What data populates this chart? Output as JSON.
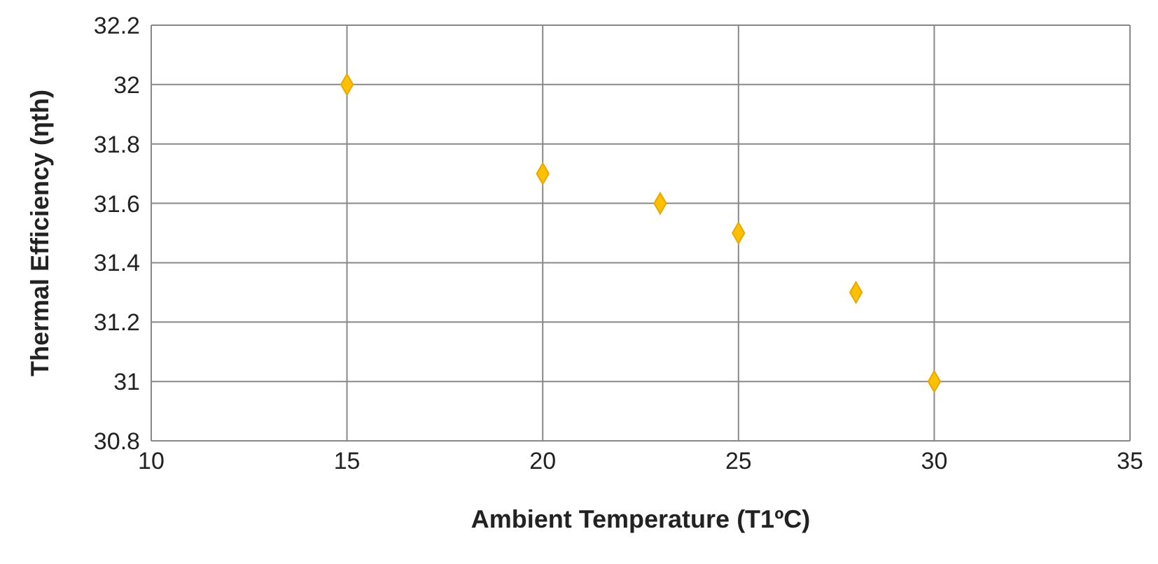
{
  "chart_data": {
    "type": "scatter",
    "xlabel": "Ambient Temperature (T1ºC)",
    "ylabel": "Thermal Efficiency (ηth)",
    "x": [
      15,
      20,
      23,
      25,
      28,
      30
    ],
    "series": [
      {
        "color": "#ffc000",
        "values": [
          32,
          31.7,
          31.6,
          31.5,
          31.3,
          31
        ]
      }
    ],
    "xlim": [
      10,
      35
    ],
    "xticks": [
      10,
      15,
      20,
      25,
      30,
      35
    ],
    "ylim": [
      30.8,
      32.2
    ],
    "yticks": [
      30.8,
      31,
      31.2,
      31.4,
      31.6,
      31.8,
      32,
      32.2
    ],
    "grid": true,
    "marker": "diamond"
  }
}
